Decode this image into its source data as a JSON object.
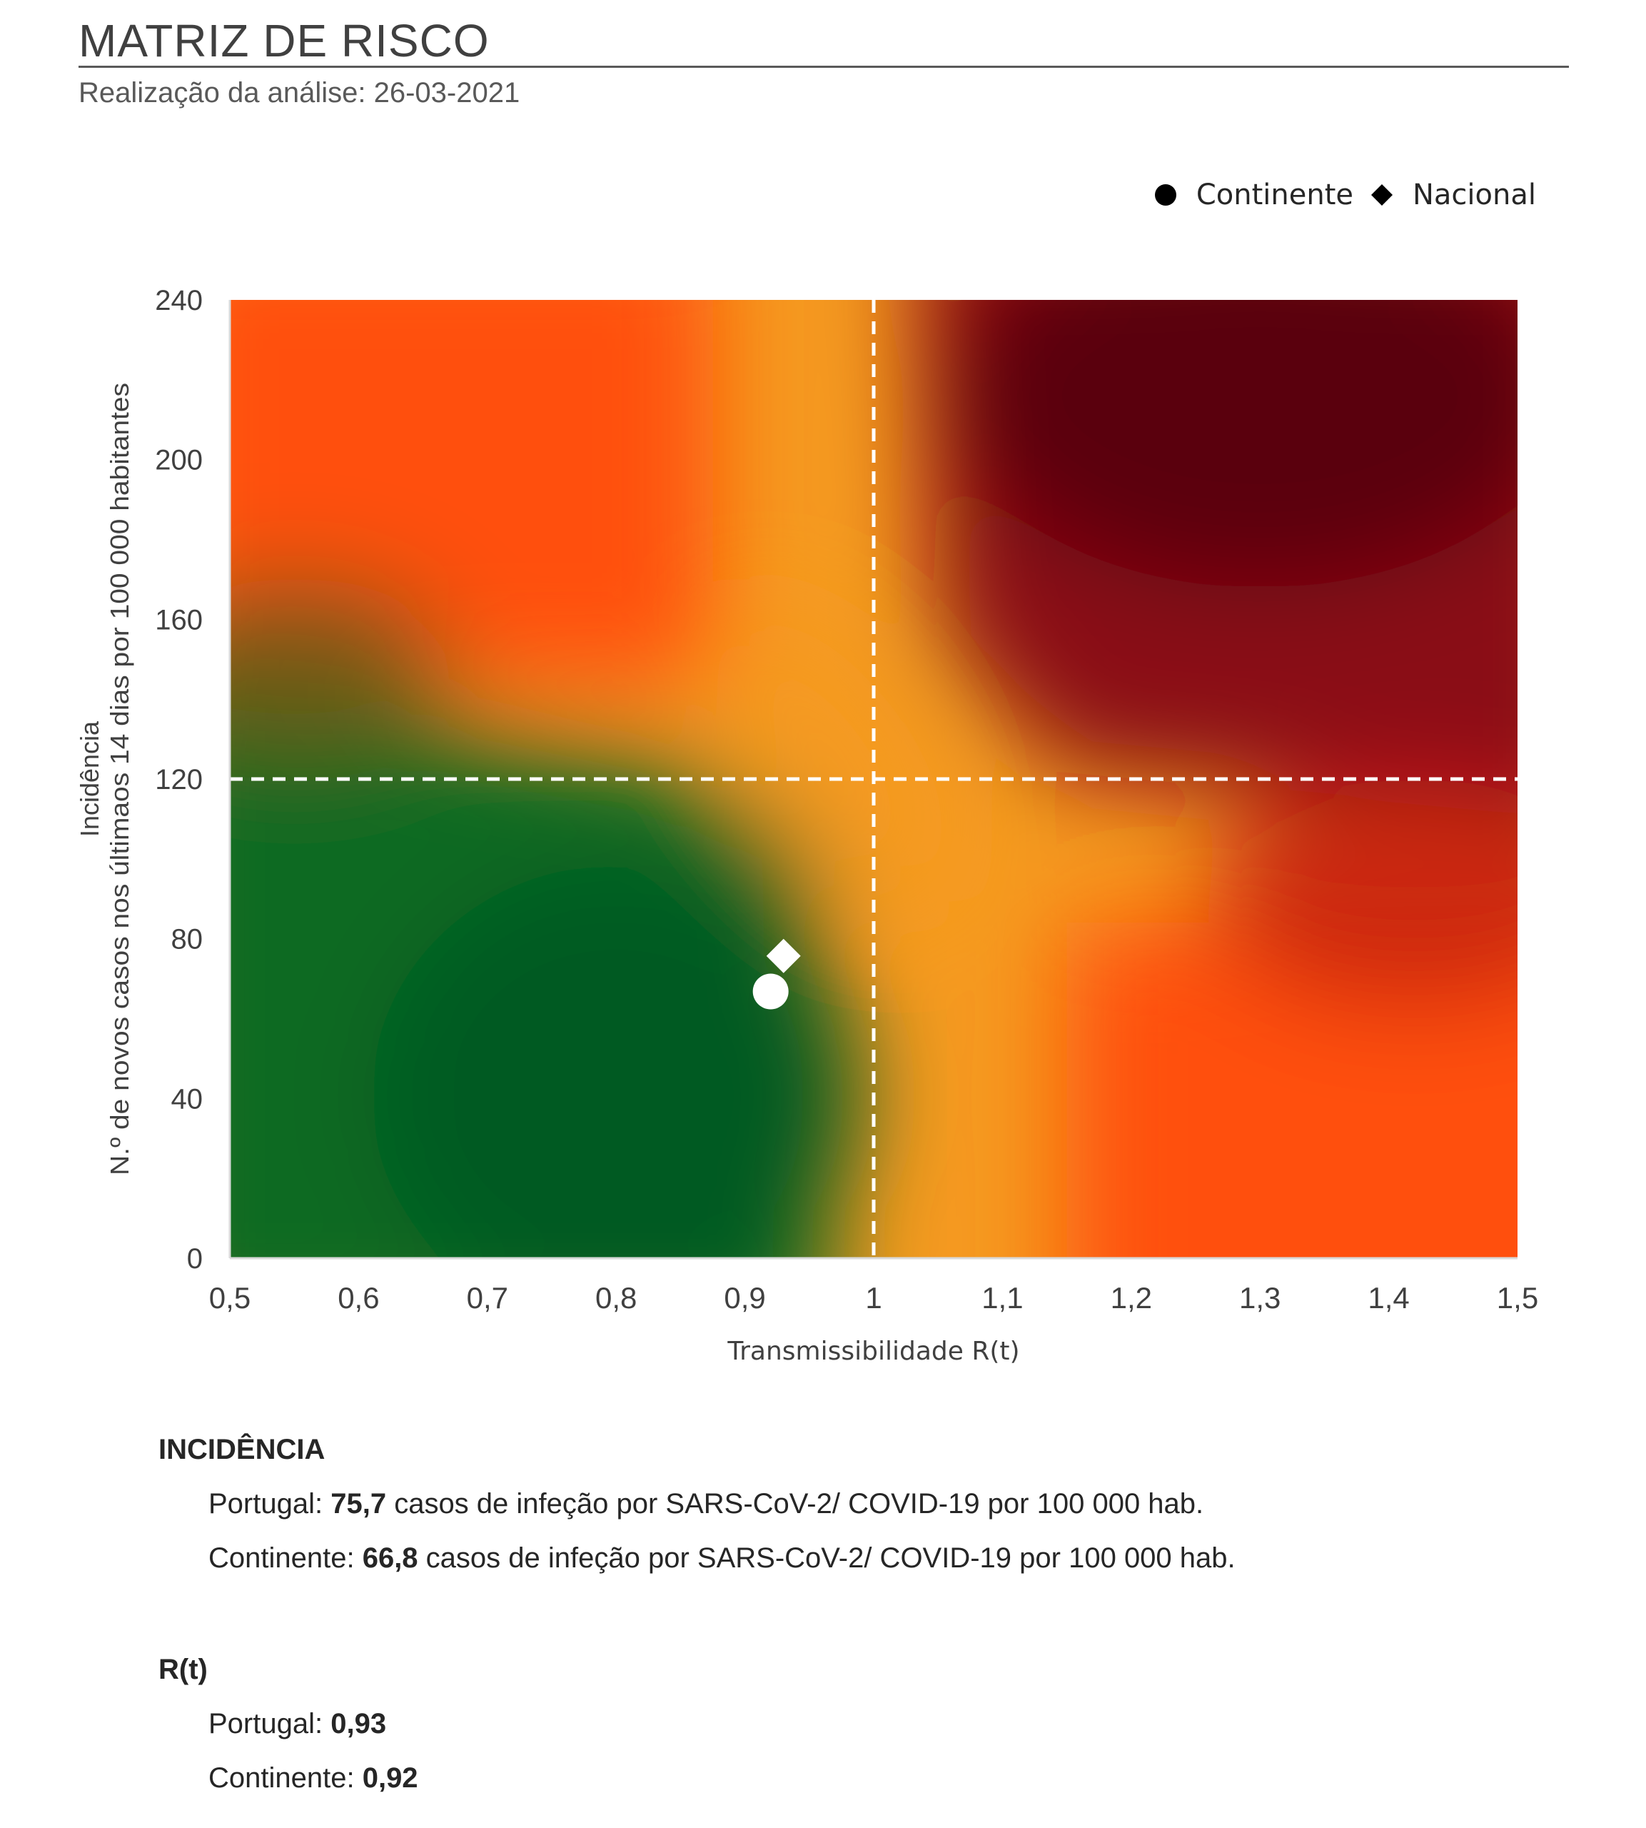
{
  "header": {
    "title": "MATRIZ DE RISCO",
    "subtitle": "Realização da análise: 26-03-2021"
  },
  "chart_data": {
    "type": "scatter",
    "xlabel": "Transmissibilidade R(t)",
    "ylabel_line1": "Incidência",
    "ylabel_line2": "N.º de novos casos nos últimaos 14 dias por 100 000 habitantes",
    "xlim": [
      0.5,
      1.5
    ],
    "ylim": [
      0,
      240
    ],
    "x_ticks": [
      "0,5",
      "0,6",
      "0,7",
      "0,8",
      "0,9",
      "1",
      "1,1",
      "1,2",
      "1,3",
      "1,4",
      "1,5"
    ],
    "y_ticks": [
      "0",
      "40",
      "80",
      "120",
      "160",
      "200",
      "240"
    ],
    "thresholds": {
      "x": 1,
      "y": 120
    },
    "legend": {
      "position": "top-right"
    },
    "series": [
      {
        "name": "Continente",
        "marker": "circle",
        "x": 0.92,
        "y": 66.8,
        "color": "#ffffff"
      },
      {
        "name": "Nacional",
        "marker": "diamond",
        "x": 0.93,
        "y": 75.7,
        "color": "#ffffff"
      }
    ],
    "background": {
      "type": "risk-gradient",
      "low_color": "#005a20",
      "mid_color": "#f59a20",
      "high_color": "#5a0010",
      "edge_color": "#ff5010"
    }
  },
  "summary": {
    "incidencia_heading": "INCIDÊNCIA",
    "incidencia_portugal_label": "Portugal: ",
    "incidencia_portugal_value": "75,7",
    "incidencia_continente_label": "Continente: ",
    "incidencia_continente_value": "66,8",
    "incidencia_suffix": " casos de infeção por SARS-CoV-2/ COVID-19 por 100 000 hab.",
    "rt_heading": "R(t)",
    "rt_portugal_label": "Portugal: ",
    "rt_portugal_value": "0,93",
    "rt_continente_label": "Continente: ",
    "rt_continente_value": "0,92"
  }
}
